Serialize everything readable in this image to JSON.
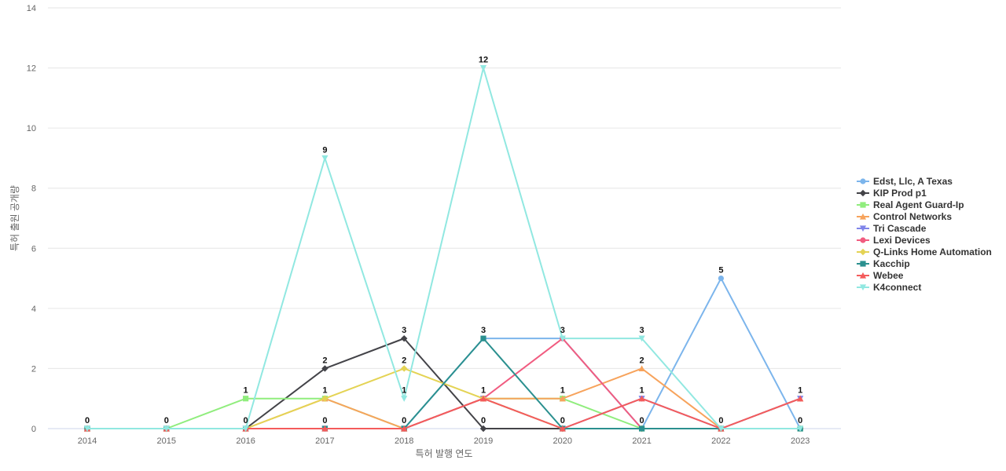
{
  "chart_data": {
    "type": "line",
    "xlabel": "특허 발행 연도",
    "ylabel": "특허 출원 공개량",
    "x": [
      "2014",
      "2015",
      "2016",
      "2017",
      "2018",
      "2019",
      "2020",
      "2021",
      "2022",
      "2023"
    ],
    "ylim": [
      0,
      14
    ],
    "yticks": [
      0,
      2,
      4,
      6,
      8,
      10,
      12,
      14
    ],
    "grid": true,
    "legend_position": "right",
    "series": [
      {
        "name": "Edst, Llc, A Texas",
        "color": "#7cb5ec",
        "marker": "circle",
        "values": [
          0,
          0,
          0,
          0,
          0,
          3,
          3,
          0,
          5,
          0
        ]
      },
      {
        "name": "KIP Prod p1",
        "color": "#434348",
        "marker": "diamond",
        "values": [
          0,
          0,
          0,
          2,
          3,
          0,
          0,
          0,
          0,
          0
        ]
      },
      {
        "name": "Real Agent Guard-Ip",
        "color": "#90ed7d",
        "marker": "square",
        "values": [
          0,
          0,
          1,
          1,
          0,
          1,
          1,
          0,
          0,
          0
        ]
      },
      {
        "name": "Control Networks",
        "color": "#f7a35c",
        "marker": "triangle",
        "values": [
          0,
          0,
          0,
          1,
          0,
          1,
          1,
          2,
          0,
          1
        ]
      },
      {
        "name": "Tri Cascade",
        "color": "#8085e9",
        "marker": "triangle-down",
        "values": [
          0,
          0,
          0,
          0,
          0,
          1,
          0,
          1,
          0,
          1
        ]
      },
      {
        "name": "Lexi Devices",
        "color": "#f15c80",
        "marker": "circle",
        "values": [
          0,
          0,
          0,
          0,
          0,
          1,
          3,
          0,
          0,
          0
        ]
      },
      {
        "name": "Q-Links Home Automation",
        "color": "#e4d354",
        "marker": "diamond",
        "values": [
          0,
          0,
          0,
          1,
          2,
          1,
          0,
          0,
          0,
          0
        ]
      },
      {
        "name": "Kacchip",
        "color": "#2b908f",
        "marker": "square",
        "values": [
          0,
          0,
          0,
          0,
          0,
          3,
          0,
          0,
          0,
          0
        ]
      },
      {
        "name": "Webee",
        "color": "#f45b5b",
        "marker": "triangle",
        "values": [
          0,
          0,
          0,
          0,
          0,
          1,
          0,
          1,
          0,
          1
        ]
      },
      {
        "name": "K4connect",
        "color": "#91e8e1",
        "marker": "triangle-down",
        "values": [
          0,
          0,
          0,
          9,
          1,
          12,
          3,
          3,
          0,
          0
        ]
      }
    ],
    "data_labels": [
      {
        "x": "2014",
        "value": "0"
      },
      {
        "x": "2015",
        "value": "0"
      },
      {
        "x": "2016",
        "value": "1"
      },
      {
        "x": "2016",
        "value": "0"
      },
      {
        "x": "2017",
        "value": "9"
      },
      {
        "x": "2017",
        "value": "2"
      },
      {
        "x": "2017",
        "value": "1"
      },
      {
        "x": "2017",
        "value": "0"
      },
      {
        "x": "2018",
        "value": "3"
      },
      {
        "x": "2018",
        "value": "2"
      },
      {
        "x": "2018",
        "value": "1"
      },
      {
        "x": "2018",
        "value": "0"
      },
      {
        "x": "2019",
        "value": "12"
      },
      {
        "x": "2019",
        "value": "3"
      },
      {
        "x": "2019",
        "value": "1"
      },
      {
        "x": "2019",
        "value": "0"
      },
      {
        "x": "2020",
        "value": "3"
      },
      {
        "x": "2020",
        "value": "1"
      },
      {
        "x": "2020",
        "value": "0"
      },
      {
        "x": "2021",
        "value": "3"
      },
      {
        "x": "2021",
        "value": "2"
      },
      {
        "x": "2021",
        "value": "1"
      },
      {
        "x": "2021",
        "value": "0"
      },
      {
        "x": "2022",
        "value": "5"
      },
      {
        "x": "2022",
        "value": "0"
      },
      {
        "x": "2023",
        "value": "1"
      },
      {
        "x": "2023",
        "value": "0"
      }
    ]
  }
}
